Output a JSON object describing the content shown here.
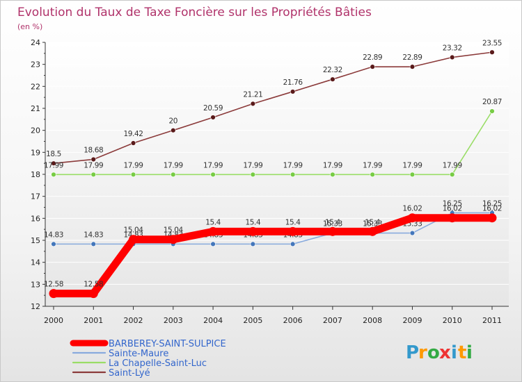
{
  "chart_data": {
    "type": "line",
    "title": "Evolution du Taux de Taxe Foncière sur les Propriétés Bâties",
    "subtitle": "(en %)",
    "xlabel": "",
    "ylabel": "(en %)",
    "x": [
      "2000",
      "2001",
      "2002",
      "2003",
      "2004",
      "2005",
      "2006",
      "2007",
      "2008",
      "2009",
      "2010",
      "2011"
    ],
    "yticks": [
      "12",
      "13",
      "14",
      "15",
      "16",
      "17",
      "18",
      "19",
      "20",
      "21",
      "22",
      "23",
      "24"
    ],
    "ylim": [
      12,
      24
    ],
    "series": [
      {
        "name": "Saint-Lyé",
        "color": "#8b3a3a",
        "pointColor": "#5a1a1a",
        "style": "thin",
        "values": [
          18.5,
          18.68,
          19.42,
          20,
          20.59,
          21.21,
          21.76,
          22.32,
          22.89,
          22.89,
          23.32,
          23.55
        ],
        "labels": [
          "18.5",
          "18.68",
          "19.42",
          "20",
          "20.59",
          "21.21",
          "21.76",
          "22.32",
          "22.89",
          "22.89",
          "23.32",
          "23.55"
        ]
      },
      {
        "name": "La Chapelle-Saint-Luc",
        "color": "#99dd66",
        "pointColor": "#77cc44",
        "style": "thin",
        "values": [
          17.99,
          17.99,
          17.99,
          17.99,
          17.99,
          17.99,
          17.99,
          17.99,
          17.99,
          17.99,
          17.99,
          20.87
        ],
        "labels": [
          "17.99",
          "17.99",
          "17.99",
          "17.99",
          "17.99",
          "17.99",
          "17.99",
          "17.99",
          "17.99",
          "17.99",
          "17.99",
          "20.87"
        ]
      },
      {
        "name": "Sainte-Maure",
        "color": "#88aadd",
        "pointColor": "#4477bb",
        "style": "thin",
        "values": [
          14.83,
          14.83,
          14.83,
          14.83,
          14.83,
          14.83,
          14.83,
          15.33,
          15.33,
          15.33,
          16.25,
          16.25
        ],
        "labels": [
          "14.83",
          "14.83",
          "14.83",
          "14.83",
          "14.83",
          "14.83",
          "14.83",
          "15.33",
          "15.33",
          "15.33",
          "16.25",
          "16.25"
        ]
      },
      {
        "name": "BARBEREY-SAINT-SULPICE",
        "color": "#ff0000",
        "pointColor": "#ff0000",
        "style": "thick",
        "values": [
          12.58,
          12.58,
          15.04,
          15.04,
          15.4,
          15.4,
          15.4,
          15.4,
          15.4,
          16.02,
          16.02,
          16.02
        ],
        "labels": [
          "12.58",
          "12.58",
          "15.04",
          "15.04",
          "15.4",
          "15.4",
          "15.4",
          "15.4",
          "15.4",
          "16.02",
          "16.02",
          "16.02"
        ]
      }
    ],
    "legend": [
      {
        "name": "BARBEREY-SAINT-SULPICE",
        "color": "#ff0000",
        "style": "thick"
      },
      {
        "name": "Sainte-Maure",
        "color": "#88aadd",
        "style": "thin"
      },
      {
        "name": "La Chapelle-Saint-Luc",
        "color": "#99dd66",
        "style": "thin"
      },
      {
        "name": "Saint-Lyé",
        "color": "#8b3a3a",
        "style": "thin"
      }
    ],
    "legend_position": "bottom-left",
    "grid": true
  },
  "logo": {
    "letters": [
      "P",
      "r",
      "o",
      "x",
      "i",
      "t",
      "i"
    ],
    "colors": [
      "#3399cc",
      "#ff9900",
      "#33aa44",
      "#ee3333",
      "#3399cc",
      "#ff9900",
      "#33aa44"
    ]
  }
}
